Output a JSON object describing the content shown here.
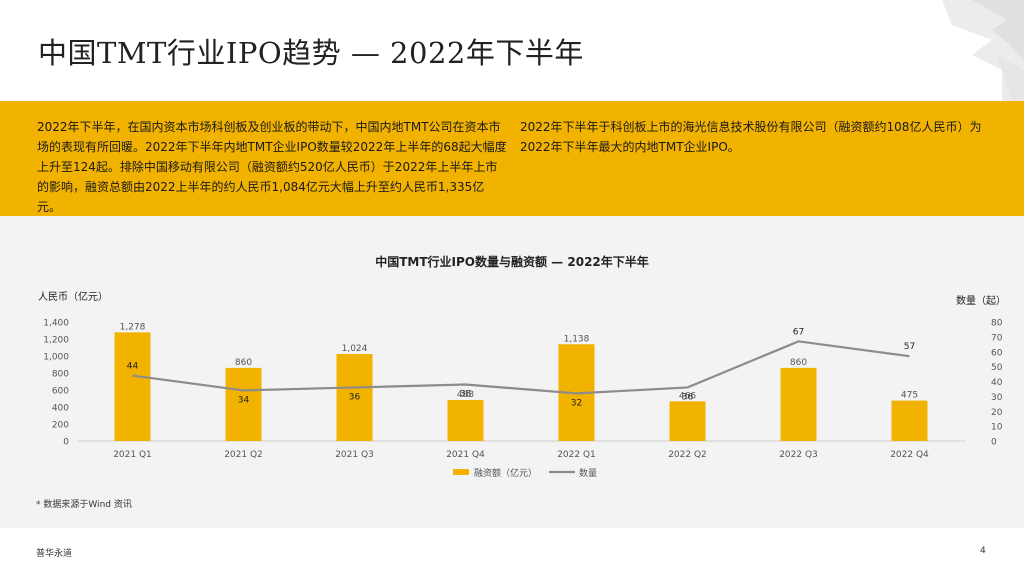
{
  "slide": {
    "title": "中国TMT行业IPO趋势 — 2022年下半年",
    "summary_left": "2022年下半年，在国内资本市场科创板及创业板的带动下，中国内地TMT公司在资本市场的表现有所回暖。2022年下半年内地TMT企业IPO数量较2022年上半年的68起大幅度上升至124起。排除中国移动有限公司（融资额约520亿人民币）于2022年上半年上市的影响，融资总额由2022上半年的约人民币1,084亿元大幅上升至约人民币1,335亿元。",
    "summary_right": "2022年下半年于科创板上市的海光信息技术股份有限公司（融资额约108亿人民币）为2022年下半年最大的内地TMT企业IPO。",
    "footnote": "* 数据来源于Wind 资讯",
    "brand": "普华永道",
    "page_number": "4"
  },
  "colors": {
    "accent": "#f2b200",
    "line": "#8c8c8c",
    "panel": "#f3f3f3"
  },
  "chart_data": {
    "type": "bar",
    "title": "中国TMT行业IPO数量与融资额 — 2022年下半年",
    "categories": [
      "2021 Q1",
      "2021 Q2",
      "2021 Q3",
      "2021 Q4",
      "2022 Q1",
      "2022 Q2",
      "2022 Q3",
      "2022 Q4"
    ],
    "series": [
      {
        "name": "融资额（亿元）",
        "type": "bar",
        "axis": "left",
        "values": [
          1278,
          860,
          1024,
          483,
          1138,
          466,
          860,
          475
        ],
        "labels": [
          "1,278",
          "860",
          "1,024",
          "483",
          "1,138",
          "466",
          "860",
          "475"
        ]
      },
      {
        "name": "数量",
        "type": "line",
        "axis": "right",
        "values": [
          44,
          34,
          36,
          38,
          32,
          36,
          67,
          57
        ],
        "labels": [
          "44",
          "34",
          "36",
          "38",
          "32",
          "36",
          "67",
          "57"
        ]
      }
    ],
    "ylabel_left": "人民币（亿元）",
    "ylabel_right": "数量（起）",
    "ylim_left": [
      0,
      1400
    ],
    "yticks_left": [
      "0",
      "200",
      "400",
      "600",
      "800",
      "1,000",
      "1,200",
      "1,400"
    ],
    "ylim_right": [
      0,
      80
    ],
    "yticks_right": [
      "0",
      "10",
      "20",
      "30",
      "40",
      "50",
      "60",
      "70",
      "80"
    ],
    "legend_position": "bottom-center",
    "grid": false
  }
}
